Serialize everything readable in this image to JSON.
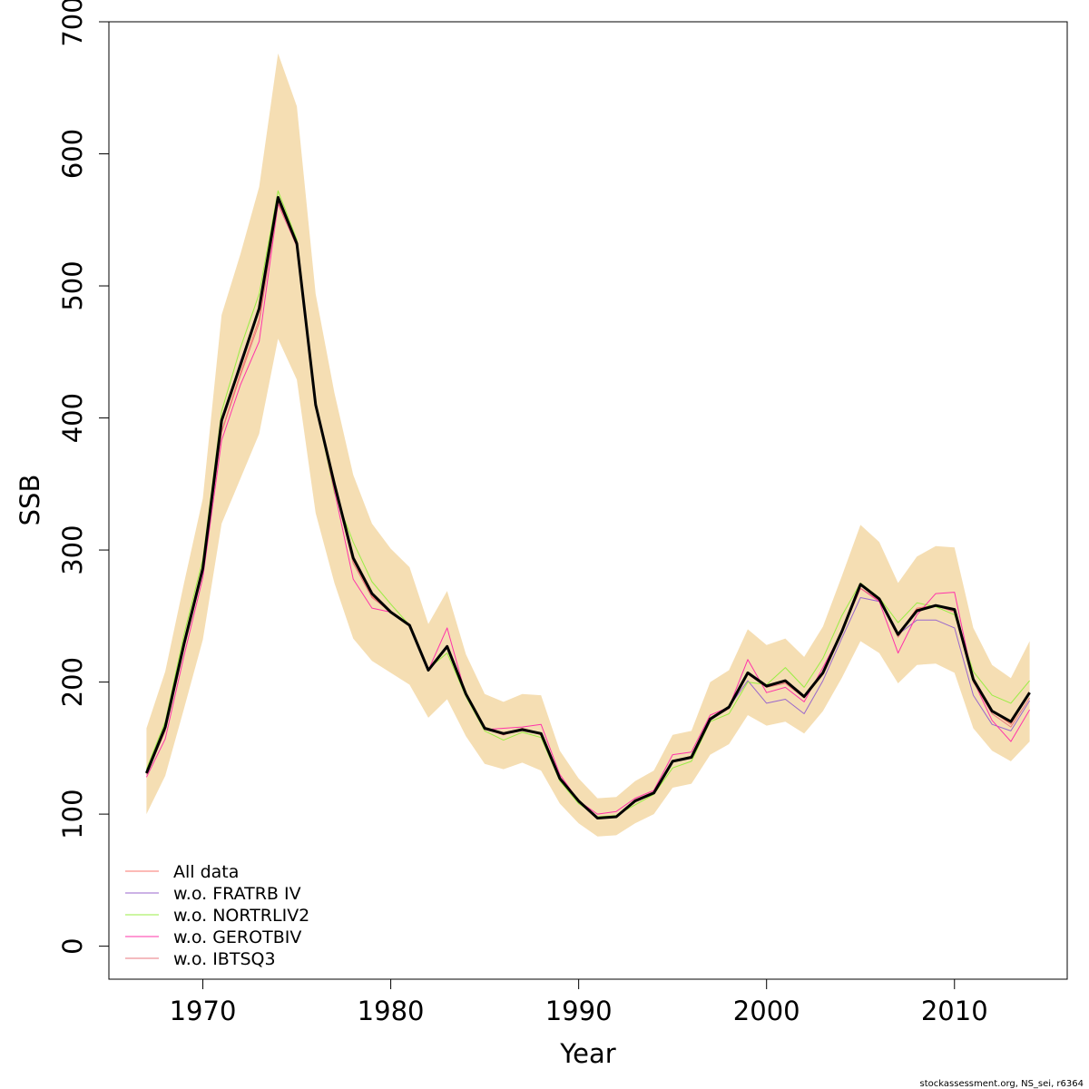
{
  "chart_data": {
    "type": "line",
    "xlabel": "Year",
    "ylabel": "SSB",
    "xlim": [
      1965,
      2016
    ],
    "ylim": [
      -25,
      700
    ],
    "xticks": [
      1970,
      1980,
      1990,
      2000,
      2010
    ],
    "yticks": [
      0,
      100,
      200,
      300,
      400,
      500,
      600,
      700
    ],
    "legend_position": "bottom-left",
    "x": [
      1967,
      1968,
      1969,
      1970,
      1971,
      1972,
      1973,
      1974,
      1975,
      1976,
      1977,
      1978,
      1979,
      1980,
      1981,
      1982,
      1983,
      1984,
      1985,
      1986,
      1987,
      1988,
      1989,
      1990,
      1991,
      1992,
      1993,
      1994,
      1995,
      1996,
      1997,
      1998,
      1999,
      2000,
      2001,
      2002,
      2003,
      2004,
      2005,
      2006,
      2007,
      2008,
      2009,
      2010,
      2011,
      2012,
      2013,
      2014
    ],
    "band": {
      "color": "#f5deb3",
      "upper": [
        165,
        208,
        275,
        339,
        478,
        524,
        575,
        676,
        636,
        494,
        419,
        357,
        320,
        301,
        287,
        244,
        269,
        221,
        191,
        185,
        191,
        190,
        148,
        127,
        112,
        113,
        125,
        133,
        160,
        163,
        200,
        209,
        240,
        228,
        233,
        219,
        242,
        280,
        319,
        306,
        275,
        295,
        303,
        302,
        241,
        213,
        203,
        231
      ],
      "lower": [
        100,
        129,
        180,
        232,
        320,
        354,
        388,
        460,
        429,
        328,
        275,
        233,
        216,
        207,
        198,
        173,
        187,
        159,
        138,
        134,
        139,
        133,
        108,
        93,
        83,
        84,
        93,
        100,
        120,
        123,
        145,
        153,
        175,
        167,
        170,
        161,
        178,
        203,
        231,
        222,
        199,
        213,
        214,
        207,
        165,
        148,
        140,
        155
      ]
    },
    "series": [
      {
        "name": "All data",
        "color": "#f8766d",
        "width": 1,
        "values": [
          131,
          165,
          228,
          285,
          390,
          434,
          475,
          564,
          530,
          410,
          350,
          292,
          265,
          253,
          243,
          209,
          226,
          190,
          165,
          160,
          165,
          160,
          127,
          109,
          97,
          98,
          111,
          117,
          140,
          144,
          172,
          180,
          207,
          197,
          200,
          188,
          206,
          238,
          271,
          262,
          236,
          256,
          258,
          254,
          200,
          178,
          168,
          192
        ]
      },
      {
        "name": "w.o. FRATRB IV",
        "color": "#9966cc",
        "width": 1,
        "values": [
          132,
          167,
          230,
          288,
          397,
          443,
          482,
          566,
          533,
          411,
          347,
          294,
          267,
          253,
          243,
          210,
          226,
          191,
          165,
          161,
          164,
          161,
          128,
          110,
          97,
          98,
          111,
          117,
          140,
          143,
          171,
          181,
          201,
          184,
          187,
          176,
          201,
          233,
          264,
          261,
          236,
          247,
          247,
          241,
          190,
          168,
          163,
          186
        ]
      },
      {
        "name": "w.o. NORTRLIV2",
        "color": "#99ee44",
        "width": 1,
        "values": [
          134,
          170,
          236,
          293,
          405,
          453,
          494,
          572,
          535,
          410,
          343,
          306,
          276,
          259,
          243,
          210,
          222,
          189,
          163,
          156,
          162,
          158,
          125,
          108,
          98,
          99,
          107,
          115,
          135,
          140,
          170,
          176,
          200,
          198,
          211,
          196,
          218,
          250,
          275,
          264,
          245,
          260,
          257,
          251,
          208,
          190,
          184,
          201
        ]
      },
      {
        "name": "w.o. GEROTBIV",
        "color": "#ff33aa",
        "width": 1,
        "values": [
          128,
          157,
          220,
          279,
          383,
          425,
          458,
          562,
          530,
          410,
          345,
          278,
          256,
          253,
          243,
          209,
          241,
          190,
          164,
          165,
          166,
          168,
          130,
          110,
          100,
          102,
          112,
          118,
          145,
          147,
          175,
          181,
          217,
          192,
          196,
          185,
          211,
          238,
          271,
          261,
          222,
          251,
          267,
          268,
          201,
          171,
          155,
          179
        ]
      },
      {
        "name": "w.o. IBTSQ3",
        "color": "#e8777f",
        "width": 1,
        "values": [
          130,
          163,
          226,
          284,
          389,
          432,
          472,
          563,
          530,
          410,
          349,
          290,
          264,
          253,
          243,
          209,
          226,
          190,
          165,
          160,
          165,
          161,
          127,
          109,
          97,
          98,
          111,
          117,
          140,
          144,
          172,
          180,
          206,
          196,
          199,
          188,
          206,
          238,
          271,
          262,
          234,
          255,
          258,
          253,
          200,
          176,
          166,
          188
        ]
      },
      {
        "name": "",
        "color": "#000000",
        "width": 3,
        "in_legend": false,
        "values": [
          131,
          166,
          229,
          286,
          398,
          440,
          483,
          567,
          532,
          410,
          350,
          294,
          267,
          253,
          243,
          209,
          227,
          191,
          165,
          161,
          164,
          161,
          127,
          110,
          97,
          98,
          110,
          116,
          140,
          143,
          172,
          181,
          207,
          197,
          201,
          189,
          207,
          238,
          274,
          263,
          236,
          254,
          258,
          255,
          202,
          178,
          170,
          192
        ]
      }
    ]
  },
  "credit": "stockassessment.org, NS_sei, r6364"
}
